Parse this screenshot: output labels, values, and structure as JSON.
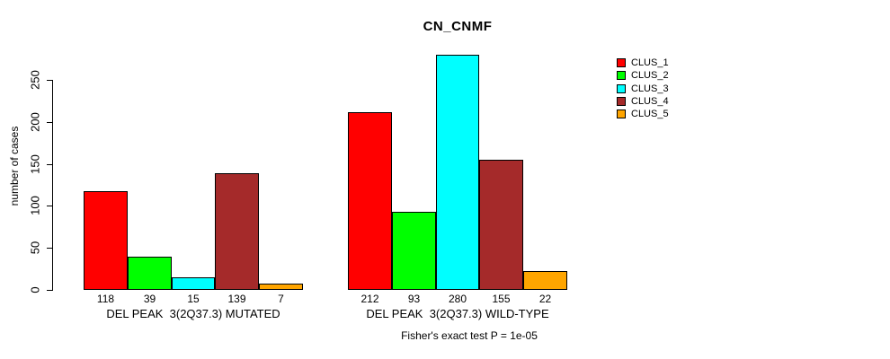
{
  "title": "CN_CNMF",
  "footer": "Fisher's exact test P = 1e-05",
  "y_axis_label": "number of cases",
  "legend": {
    "entries": [
      {
        "label": "CLUS_1",
        "color": "#FF0000"
      },
      {
        "label": "CLUS_2",
        "color": "#00FF00"
      },
      {
        "label": "CLUS_3",
        "color": "#00FFFF"
      },
      {
        "label": "CLUS_4",
        "color": "#A52A2A"
      },
      {
        "label": "CLUS_5",
        "color": "#FFA500"
      }
    ]
  },
  "chart_data": {
    "type": "bar",
    "title": "CN_CNMF",
    "xlabel": "",
    "ylabel": "number of cases",
    "ylim": [
      0,
      283
    ],
    "yticks": [
      0,
      50,
      100,
      150,
      200,
      250
    ],
    "grid": false,
    "legend_position": "right",
    "bar_value_labels_shown": true,
    "categories": [
      "DEL PEAK  3(2Q37.3) MUTATED",
      "DEL PEAK  3(2Q37.3) WILD-TYPE"
    ],
    "series": [
      {
        "name": "CLUS_1",
        "color": "#FF0000",
        "values": [
          118,
          212
        ]
      },
      {
        "name": "CLUS_2",
        "color": "#00FF00",
        "values": [
          39,
          93
        ]
      },
      {
        "name": "CLUS_3",
        "color": "#00FFFF",
        "values": [
          15,
          280
        ]
      },
      {
        "name": "CLUS_4",
        "color": "#A52A2A",
        "values": [
          139,
          155
        ]
      },
      {
        "name": "CLUS_5",
        "color": "#FFA500",
        "values": [
          7,
          22
        ]
      }
    ],
    "annotation": "Fisher's exact test P = 1e-05"
  }
}
